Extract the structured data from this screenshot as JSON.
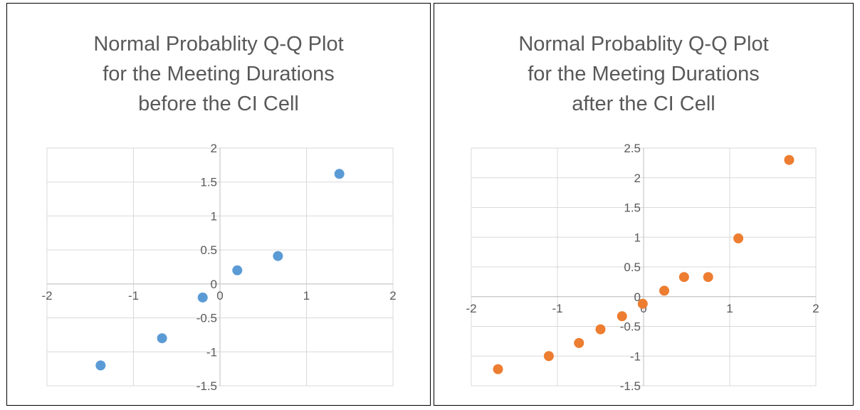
{
  "chart_data": [
    {
      "type": "scatter",
      "title_lines": [
        "Normal Probablity Q-Q Plot",
        "for the Meeting Durations",
        "before the CI Cell"
      ],
      "xlim": [
        -2,
        2
      ],
      "ylim": [
        -1.5,
        2
      ],
      "x_ticks": [
        "-2",
        "-1",
        "0",
        "1",
        "2"
      ],
      "y_ticks": [
        "2",
        "1.5",
        "1",
        "0.5",
        "0",
        "-0.5",
        "-1",
        "-1.5"
      ],
      "grid": true,
      "marker_color": "#5B9BD5",
      "points": [
        {
          "x": -1.38,
          "y": -1.2
        },
        {
          "x": -0.67,
          "y": -0.8
        },
        {
          "x": -0.2,
          "y": -0.2
        },
        {
          "x": 0.2,
          "y": 0.2
        },
        {
          "x": 0.67,
          "y": 0.41
        },
        {
          "x": 1.38,
          "y": 1.62
        }
      ]
    },
    {
      "type": "scatter",
      "title_lines": [
        "Normal Probablity Q-Q Plot",
        "for  the Meeting Durations",
        "after the CI Cell"
      ],
      "xlim": [
        -2,
        2
      ],
      "ylim": [
        -1.5,
        2.5
      ],
      "x_ticks": [
        "-2",
        "-1",
        "0",
        "1",
        "2"
      ],
      "y_ticks": [
        "2.5",
        "2",
        "1.5",
        "1",
        "0.5",
        "0",
        "-0.5",
        "-1",
        "-1.5"
      ],
      "grid": true,
      "marker_color": "#ED7D31",
      "points": [
        {
          "x": -1.69,
          "y": -1.22
        },
        {
          "x": -1.1,
          "y": -1.0
        },
        {
          "x": -0.75,
          "y": -0.78
        },
        {
          "x": -0.5,
          "y": -0.55
        },
        {
          "x": -0.25,
          "y": -0.33
        },
        {
          "x": -0.01,
          "y": -0.12
        },
        {
          "x": 0.24,
          "y": 0.1
        },
        {
          "x": 0.47,
          "y": 0.33
        },
        {
          "x": 0.75,
          "y": 0.33
        },
        {
          "x": 1.1,
          "y": 0.98
        },
        {
          "x": 1.69,
          "y": 2.3
        }
      ]
    }
  ]
}
